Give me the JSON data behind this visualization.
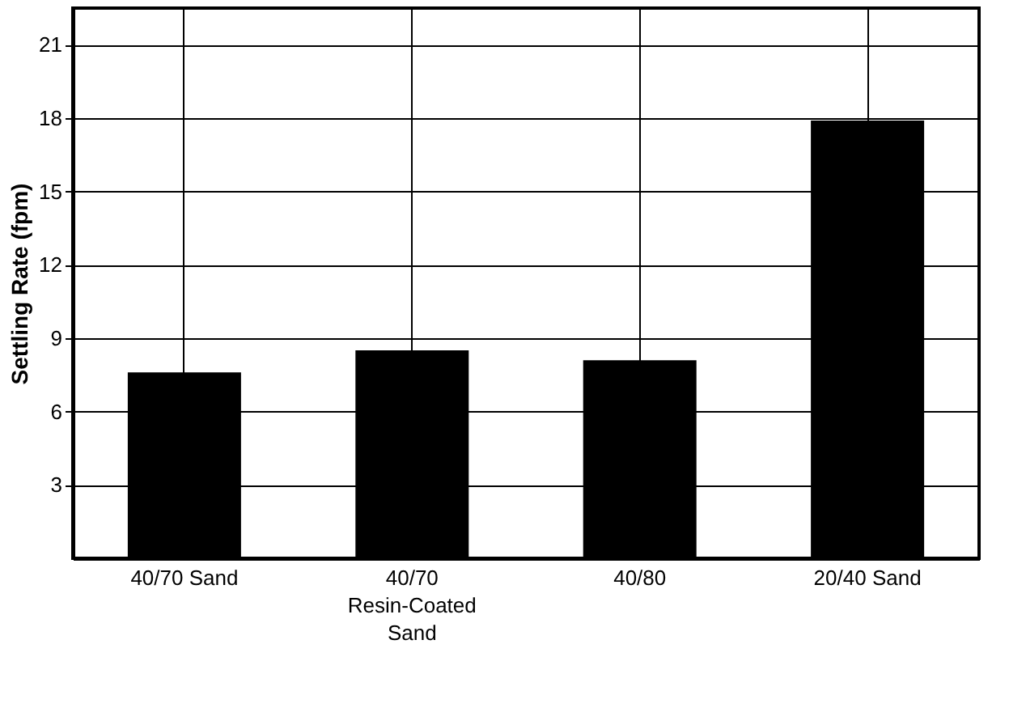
{
  "chart_data": {
    "type": "bar",
    "ylabel": "Settling Rate (fpm)",
    "categories": [
      "40/70 Sand",
      "40/70\nResin-Coated\nSand",
      "40/80",
      "20/40 Sand"
    ],
    "values": [
      7.6,
      8.5,
      8.1,
      17.9
    ],
    "color": "#000000",
    "ylim": [
      0,
      22.5
    ],
    "yticks": [
      3,
      6,
      9,
      12,
      15,
      18,
      21
    ],
    "grid": true
  }
}
